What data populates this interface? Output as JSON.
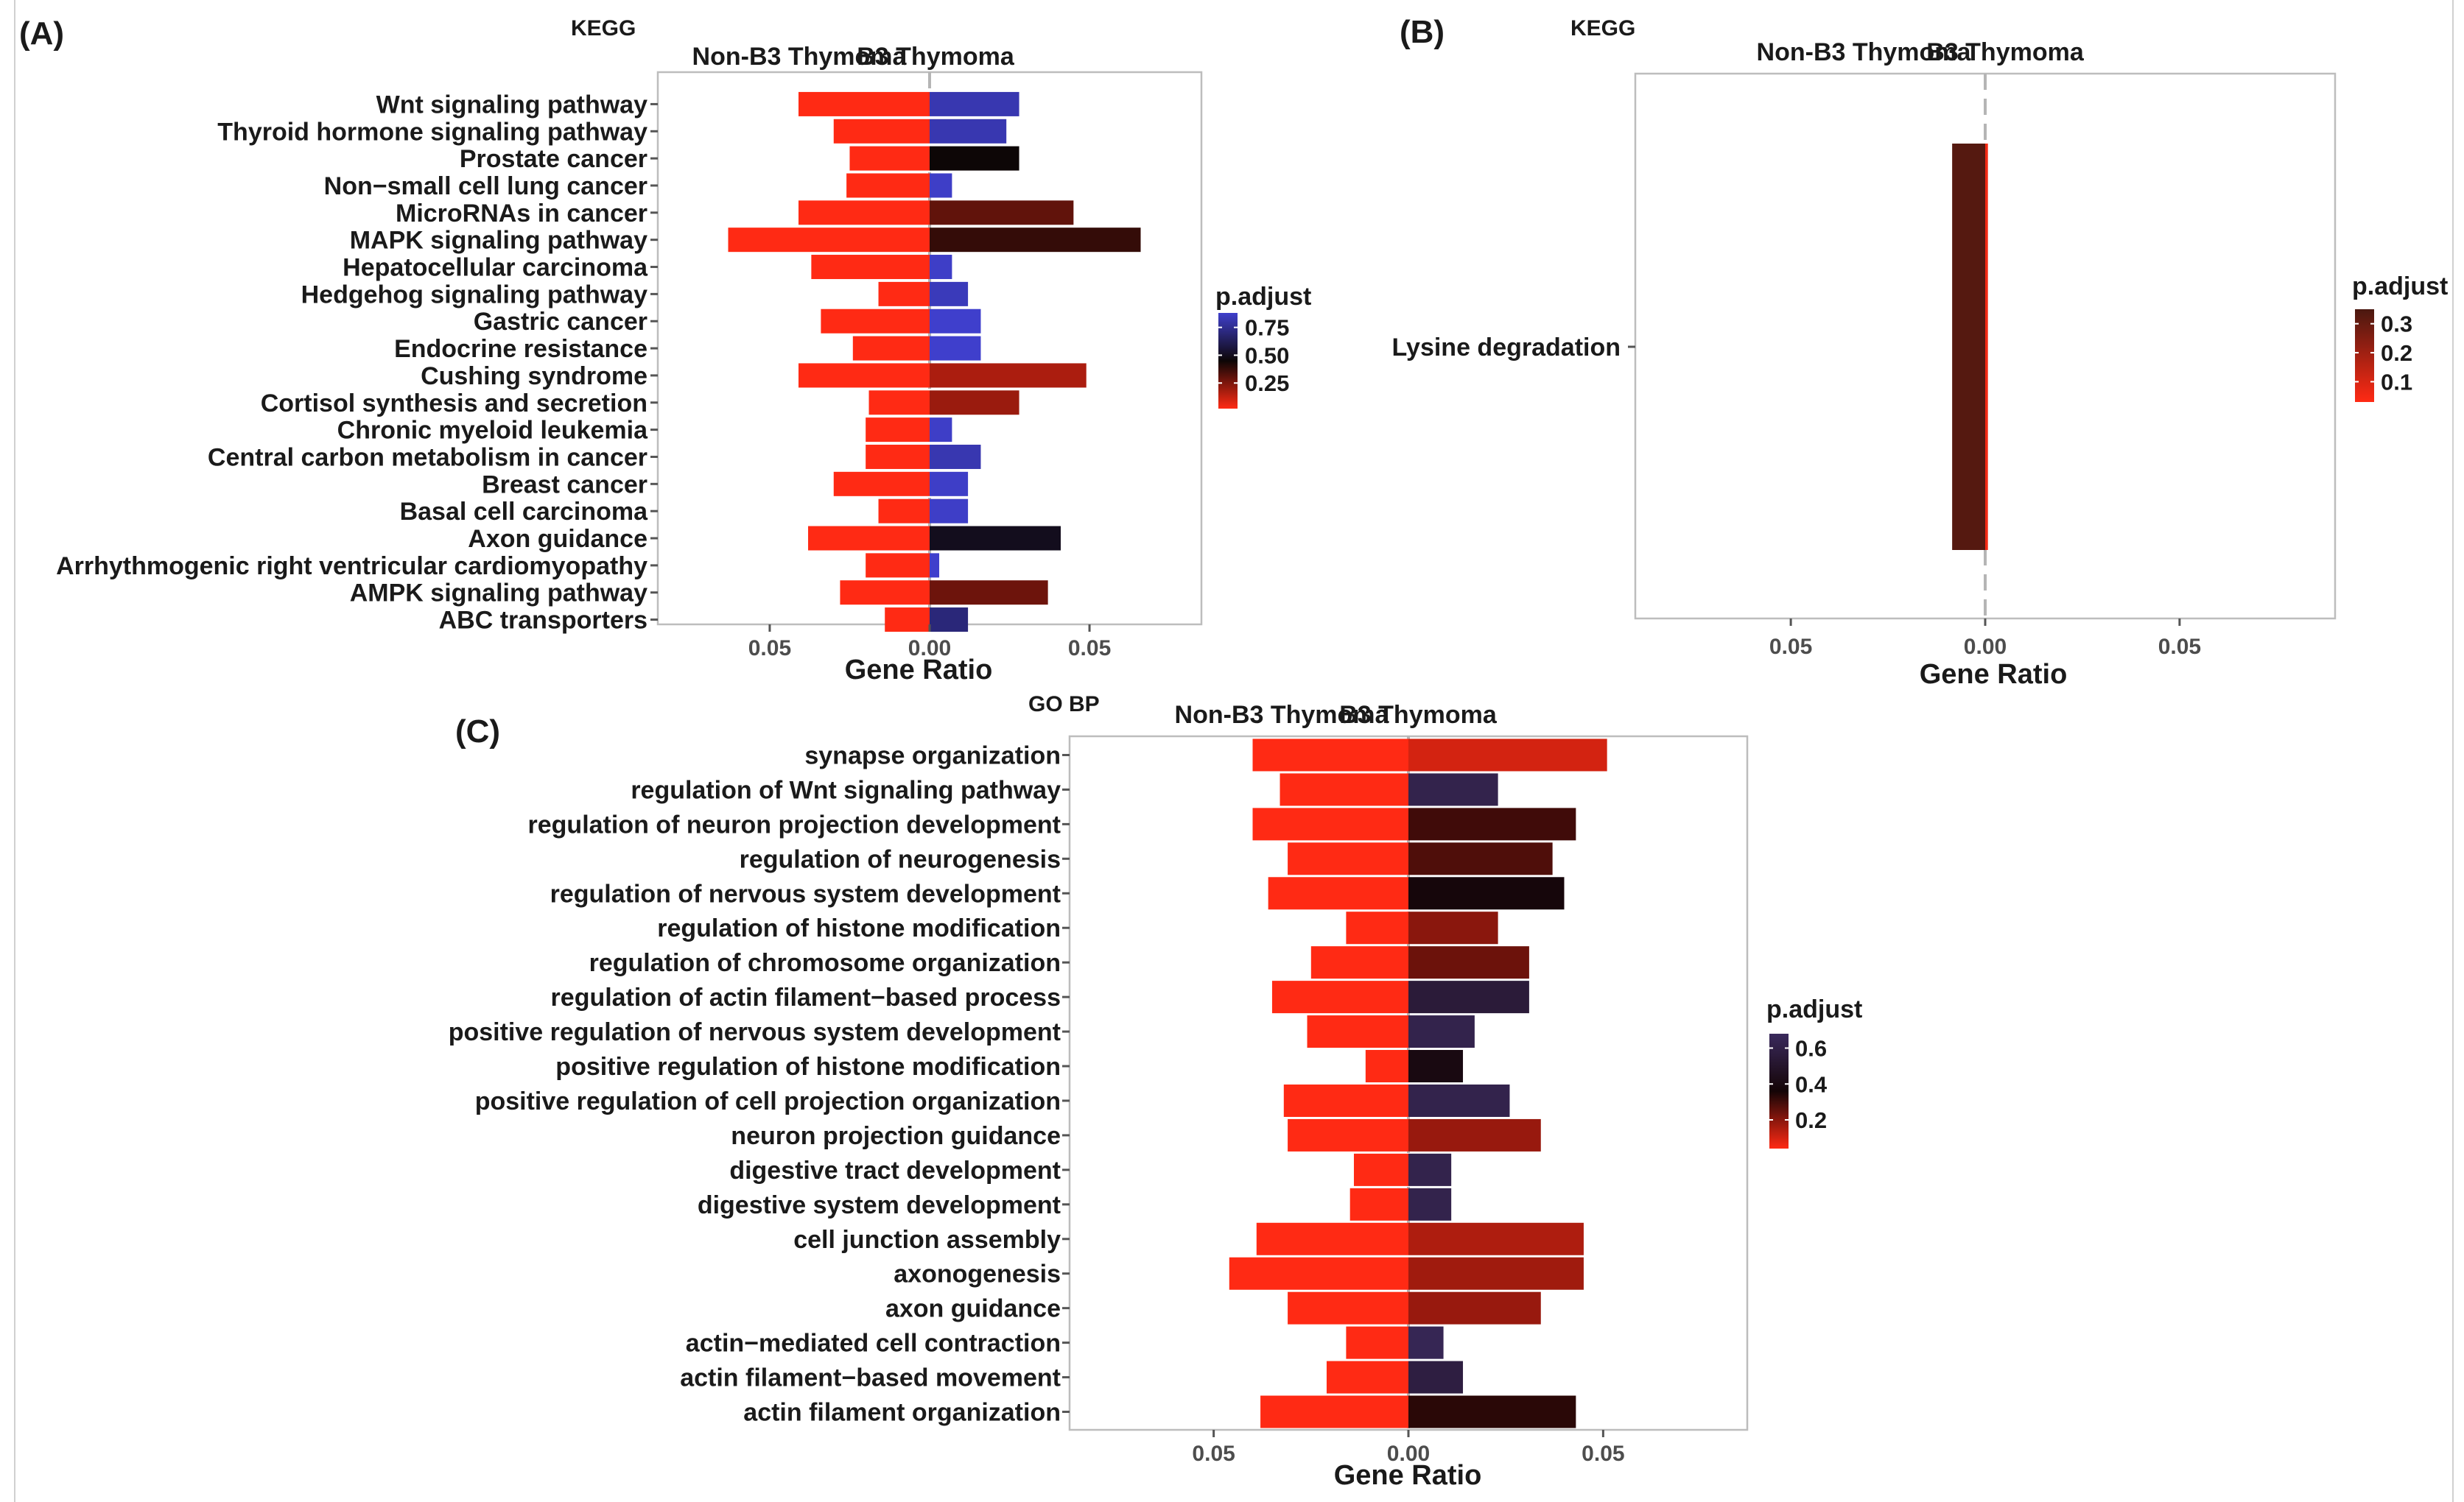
{
  "chart_data": [
    {
      "panel": "(A)",
      "type": "bar",
      "orientation": "horizontal-diverging",
      "title": "KEGG",
      "groups": [
        "Non-B3 Thymoma",
        "B3 Thymoma"
      ],
      "xlabel": "Gene Ratio",
      "xlim": [
        -0.085,
        0.085
      ],
      "xticks": [
        -0.05,
        0.0,
        0.05
      ],
      "xtick_labels": [
        "0.05",
        "0.00",
        "0.05"
      ],
      "grid": false,
      "categories": [
        "Wnt signaling pathway",
        "Thyroid hormone signaling pathway",
        "Prostate cancer",
        "Non−small cell lung cancer",
        "MicroRNAs in cancer",
        "MAPK signaling pathway",
        "Hepatocellular carcinoma",
        "Hedgehog signaling pathway",
        "Gastric cancer",
        "Endocrine resistance",
        "Cushing syndrome",
        "Cortisol synthesis and secretion",
        "Chronic myeloid leukemia",
        "Central carbon metabolism in cancer",
        "Breast cancer",
        "Basal cell carcinoma",
        "Axon guidance",
        "Arrhythmogenic right ventricular cardiomyopathy",
        "AMPK signaling pathway",
        "ABC transporters"
      ],
      "series": [
        {
          "name": "Non-B3 Thymoma",
          "values": [
            0.041,
            0.03,
            0.025,
            0.026,
            0.041,
            0.063,
            0.037,
            0.016,
            0.034,
            0.024,
            0.041,
            0.019,
            0.02,
            0.02,
            0.03,
            0.016,
            0.038,
            0.02,
            0.028,
            0.014
          ],
          "p_adjust": [
            0.02,
            0.02,
            0.02,
            0.02,
            0.02,
            0.02,
            0.02,
            0.02,
            0.02,
            0.02,
            0.02,
            0.02,
            0.02,
            0.02,
            0.02,
            0.02,
            0.02,
            0.02,
            0.02,
            0.02
          ]
        },
        {
          "name": "B3 Thymoma",
          "values": [
            0.028,
            0.024,
            0.028,
            0.007,
            0.045,
            0.066,
            0.007,
            0.012,
            0.016,
            0.016,
            0.049,
            0.028,
            0.007,
            0.016,
            0.012,
            0.012,
            0.041,
            0.003,
            0.037,
            0.012
          ],
          "p_adjust": [
            0.82,
            0.82,
            0.45,
            0.87,
            0.3,
            0.38,
            0.87,
            0.84,
            0.88,
            0.88,
            0.17,
            0.2,
            0.87,
            0.82,
            0.87,
            0.87,
            0.5,
            0.88,
            0.28,
            0.7
          ]
        }
      ],
      "legend": {
        "title": "p.adjust",
        "ticks": [
          0.75,
          0.5,
          0.25
        ],
        "tick_labels": [
          "0.75",
          "0.50",
          "0.25"
        ],
        "range": [
          0.02,
          0.88
        ],
        "placement": "right",
        "colors": {
          "low": "#ff2a14",
          "mid": "#0d0606",
          "high": "#3f3fcc"
        }
      }
    },
    {
      "panel": "(B)",
      "type": "bar",
      "orientation": "horizontal-diverging",
      "title": "KEGG",
      "groups": [
        "Non-B3 Thymoma",
        "B3 Thymoma"
      ],
      "xlabel": "Gene Ratio",
      "xlim": [
        -0.09,
        0.09
      ],
      "xticks": [
        -0.05,
        0.0,
        0.05
      ],
      "xtick_labels": [
        "0.05",
        "0.00",
        "0.05"
      ],
      "grid": false,
      "categories": [
        "Lysine degradation"
      ],
      "series": [
        {
          "name": "Non-B3 Thymoma",
          "values": [
            0.0085
          ],
          "p_adjust": [
            0.33
          ]
        },
        {
          "name": "B3 Thymoma",
          "values": [
            0.0007
          ],
          "p_adjust": [
            0.05
          ]
        }
      ],
      "legend": {
        "title": "p.adjust",
        "ticks": [
          0.3,
          0.2,
          0.1
        ],
        "tick_labels": [
          "0.3",
          "0.2",
          "0.1"
        ],
        "range": [
          0.03,
          0.35
        ],
        "placement": "right",
        "colors": {
          "low": "#ff2a14",
          "high": "#4a1810"
        }
      }
    },
    {
      "panel": "(C)",
      "type": "bar",
      "orientation": "horizontal-diverging",
      "title": "GO BP",
      "groups": [
        "Non-B3 Thymoma",
        "B3 Thymoma"
      ],
      "xlabel": "Gene Ratio",
      "xlim": [
        -0.087,
        0.087
      ],
      "xticks": [
        -0.05,
        0.0,
        0.05
      ],
      "xtick_labels": [
        "0.05",
        "0.00",
        "0.05"
      ],
      "grid": false,
      "categories": [
        "synapse organization",
        "regulation of Wnt signaling pathway",
        "regulation of neuron projection development",
        "regulation of neurogenesis",
        "regulation of nervous system development",
        "regulation of histone modification",
        "regulation of chromosome organization",
        "regulation of actin filament−based process",
        "positive regulation of nervous system development",
        "positive regulation of histone modification",
        "positive regulation of cell projection organization",
        "neuron projection guidance",
        "digestive tract development",
        "digestive system development",
        "cell junction assembly",
        "axonogenesis",
        "axon guidance",
        "actin−mediated cell contraction",
        "actin filament−based movement",
        "actin filament organization"
      ],
      "series": [
        {
          "name": "Non-B3 Thymoma",
          "values": [
            0.04,
            0.033,
            0.04,
            0.031,
            0.036,
            0.016,
            0.025,
            0.035,
            0.026,
            0.011,
            0.032,
            0.031,
            0.014,
            0.015,
            0.039,
            0.046,
            0.031,
            0.016,
            0.021,
            0.038
          ],
          "p_adjust": [
            0.04,
            0.04,
            0.04,
            0.04,
            0.04,
            0.04,
            0.04,
            0.04,
            0.04,
            0.04,
            0.04,
            0.04,
            0.04,
            0.04,
            0.04,
            0.04,
            0.04,
            0.04,
            0.04,
            0.04
          ]
        },
        {
          "name": "B3 Thymoma",
          "values": [
            0.051,
            0.023,
            0.043,
            0.037,
            0.04,
            0.023,
            0.031,
            0.031,
            0.017,
            0.014,
            0.026,
            0.034,
            0.011,
            0.011,
            0.045,
            0.045,
            0.034,
            0.009,
            0.014,
            0.043
          ],
          "p_adjust": [
            0.1,
            0.62,
            0.3,
            0.28,
            0.38,
            0.2,
            0.24,
            0.55,
            0.62,
            0.4,
            0.62,
            0.18,
            0.62,
            0.62,
            0.15,
            0.17,
            0.18,
            0.65,
            0.58,
            0.33
          ]
        }
      ],
      "legend": {
        "title": "p.adjust",
        "ticks": [
          0.6,
          0.4,
          0.2
        ],
        "tick_labels": [
          "0.6",
          "0.4",
          "0.2"
        ],
        "range": [
          0.04,
          0.68
        ],
        "placement": "right",
        "colors": {
          "low": "#ff2a14",
          "mid": "#140406",
          "high": "#3a2a5c"
        }
      }
    }
  ]
}
